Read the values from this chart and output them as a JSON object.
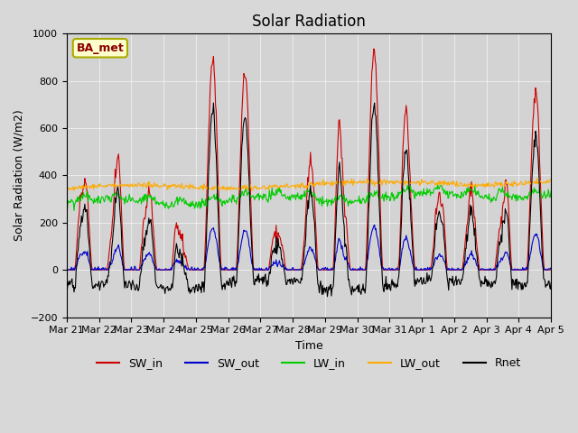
{
  "title": "Solar Radiation",
  "ylabel": "Solar Radiation (W/m2)",
  "xlabel": "Time",
  "ylim": [
    -200,
    1000
  ],
  "legend_label": "BA_met",
  "series": {
    "SW_in": {
      "color": "#cc0000",
      "label": "SW_in"
    },
    "SW_out": {
      "color": "#0000cc",
      "label": "SW_out"
    },
    "LW_in": {
      "color": "#00cc00",
      "label": "LW_in"
    },
    "LW_out": {
      "color": "#ffaa00",
      "label": "LW_out"
    },
    "Rnet": {
      "color": "#000000",
      "label": "Rnet"
    }
  },
  "xtick_labels": [
    "Mar 21",
    "Mar 22",
    "Mar 23",
    "Mar 24",
    "Mar 25",
    "Mar 26",
    "Mar 27",
    "Mar 28",
    "Mar 29",
    "Mar 30",
    "Mar 31",
    "Apr 1",
    "Apr 2",
    "Apr 3",
    "Apr 4",
    "Apr 5"
  ],
  "n_days": 15,
  "pts_per_day": 48
}
